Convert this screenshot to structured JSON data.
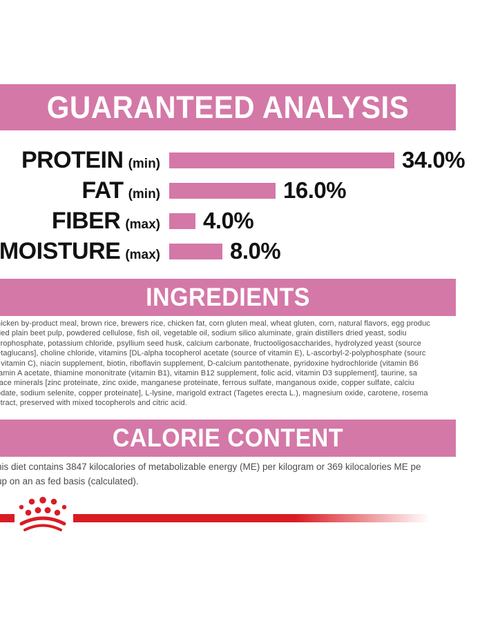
{
  "colors": {
    "background": "#ffffff",
    "banner_pink": "#d478a7",
    "bar_pink": "#d478a7",
    "brand_red": "#d91c24",
    "heading_text": "#121212",
    "body_text": "#4c4c4c",
    "banner_text": "#ffffff"
  },
  "sections": {
    "guaranteed_analysis": {
      "title": "GUARANTEED ANALYSIS"
    },
    "ingredients": {
      "title": "INGREDIENTS",
      "lines": [
        "hicken by-product meal, brown rice, brewers rice, chicken fat, corn gluten meal, wheat gluten, corn, natural flavors, egg produc",
        "ried plain beet pulp, powdered cellulose, fish oil, vegetable oil, sodium silico aluminate, grain distillers dried yeast, sodiu",
        "yrophosphate, potassium chloride, psyllium seed husk, calcium carbonate, fructooligosaccharides, hydrolyzed yeast (source",
        "etaglucans], choline chloride, vitamins [DL-alpha tocopherol acetate (source of vitamin E), L-ascorbyl-2-polyphosphate (sourc",
        "f vitamin C), niacin supplement, biotin, riboflavin supplement, D-calcium pantothenate, pyridoxine hydrochloride (vitamin B6",
        "tamin A acetate, thiamine mononitrate (vitamin B1), vitamin B12 supplement, folic acid, vitamin D3 supplement], taurine, sa",
        "race minerals [zinc proteinate, zinc oxide, manganese proteinate, ferrous sulfate, manganous oxide, copper sulfate, calciu",
        "odate, sodium selenite, copper proteinate], L-lysine, marigold extract (Tagetes erecta L.), magnesium oxide, carotene, rosema",
        "xtract, preserved with mixed tocopherols and citric acid."
      ]
    },
    "calorie_content": {
      "title": "CALORIE CONTENT",
      "lines": [
        "his diet contains 3847 kilocalories of metabolizable energy (ME) per kilogram or 369 kilocalories ME pe",
        "up on an as fed basis (calculated)."
      ]
    }
  },
  "chart_data": {
    "type": "bar",
    "orientation": "horizontal",
    "title": "GUARANTEED ANALYSIS",
    "categories": [
      "PROTEIN",
      "FAT",
      "FIBER",
      "MOISTURE"
    ],
    "qualifiers": [
      "(min)",
      "(min)",
      "(max)",
      "(max)"
    ],
    "values": [
      34.0,
      16.0,
      4.0,
      8.0
    ],
    "value_labels": [
      "34.0%",
      "16.0%",
      "4.0%",
      "8.0%"
    ],
    "xlim": [
      0,
      40
    ],
    "grid": false,
    "legend": "none",
    "bar_color": "#d478a7"
  },
  "footer": {
    "logo_name": "royal-canin-crown"
  }
}
